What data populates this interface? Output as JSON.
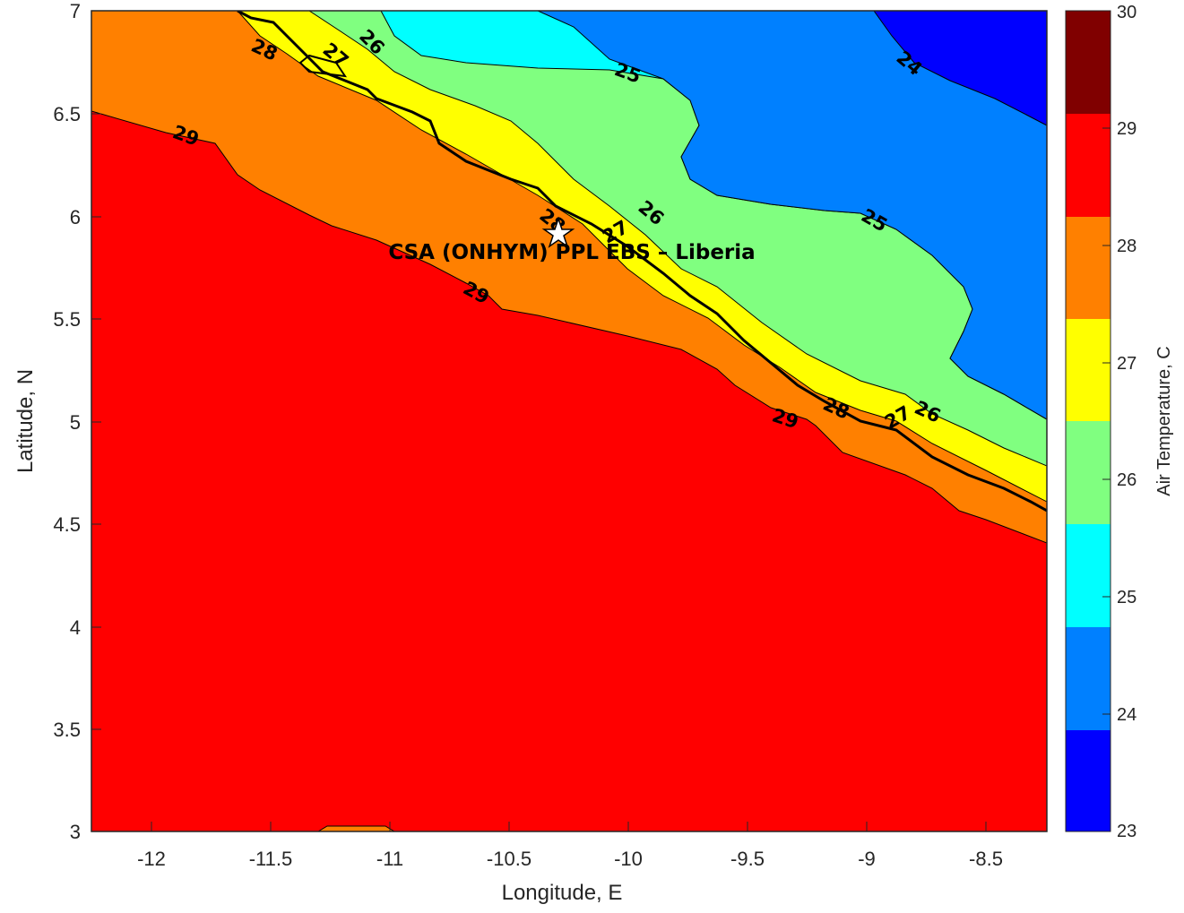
{
  "title": "",
  "chart_data": {
    "type": "heatmap",
    "subtype": "filled-contour map",
    "xlabel": "Longitude, E",
    "ylabel": "Latitude, N",
    "xlim": [
      -12.25,
      -8.25
    ],
    "ylim": [
      3,
      7
    ],
    "xticks": [
      "-12",
      "-11.5",
      "-11",
      "-10.5",
      "-10",
      "-9.5",
      "-9",
      "-8.5"
    ],
    "yticks": [
      "3",
      "3.5",
      "4",
      "4.5",
      "5",
      "5.5",
      "6",
      "6.5",
      "7"
    ],
    "grid": false,
    "colorbar": {
      "label": "Air Temperature, C",
      "levels": [
        23,
        24,
        25,
        26,
        27,
        28,
        29,
        30
      ],
      "tick_labels": [
        "23",
        "24",
        "25",
        "26",
        "27",
        "28",
        "29",
        "30"
      ],
      "colors": [
        "#0000ff",
        "#0080ff",
        "#00ffff",
        "#80ff80",
        "#ffff00",
        "#ff8000",
        "#ff0000",
        "#800000"
      ]
    },
    "contour_labels": [
      "29",
      "29",
      "29",
      "28",
      "28",
      "28",
      "28",
      "27",
      "27",
      "27",
      "26",
      "26",
      "26",
      "25",
      "25",
      "24"
    ],
    "site": {
      "name": "CSA (ONHYM) PPL EBS  – Liberia",
      "lon": -10.3,
      "lat": 5.9,
      "marker": "white-star"
    }
  }
}
